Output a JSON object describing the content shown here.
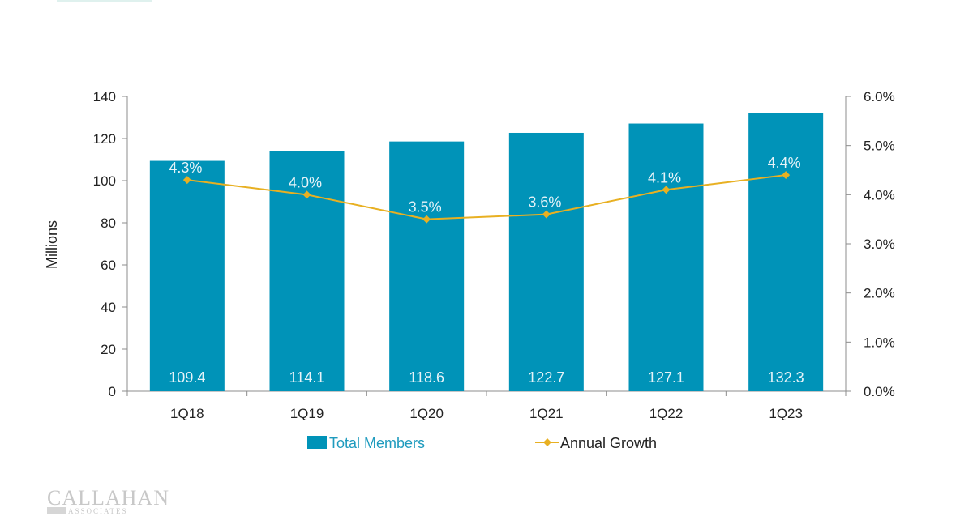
{
  "colors": {
    "bar": "#0093B8",
    "line": "#E8B022",
    "label_on_bar": "#E6F3F8",
    "axis": "#8C8C8C",
    "text": "#222222",
    "legend_text": "#1F9BBE",
    "top_accent": "#DFF1EE"
  },
  "brand": {
    "logo_main": "CALLAHAN",
    "logo_sub": "ASSOCIATES"
  },
  "chart_data": {
    "type": "bar",
    "categories": [
      "1Q18",
      "1Q19",
      "1Q20",
      "1Q21",
      "1Q22",
      "1Q23"
    ],
    "series": [
      {
        "name": "Total Members",
        "type": "bar",
        "axis": "left",
        "values": [
          109.4,
          114.1,
          118.6,
          122.7,
          127.1,
          132.3
        ],
        "labels": [
          "109.4",
          "114.1",
          "118.6",
          "122.7",
          "127.1",
          "132.3"
        ]
      },
      {
        "name": "Annual Growth",
        "type": "line",
        "axis": "right",
        "values": [
          4.3,
          4.0,
          3.5,
          3.6,
          4.1,
          4.4
        ],
        "labels": [
          "4.3%",
          "4.0%",
          "3.5%",
          "3.6%",
          "4.1%",
          "4.4%"
        ]
      }
    ],
    "title": "",
    "xlabel": "",
    "ylabel": "Millions",
    "ylim": [
      0,
      140
    ],
    "y_ticks": [
      "0",
      "20",
      "40",
      "60",
      "80",
      "100",
      "120",
      "140"
    ],
    "y2lim": [
      0,
      6
    ],
    "y2_ticks": [
      "0.0%",
      "1.0%",
      "2.0%",
      "3.0%",
      "4.0%",
      "5.0%",
      "6.0%"
    ],
    "grid": false,
    "legend_position": "bottom"
  }
}
